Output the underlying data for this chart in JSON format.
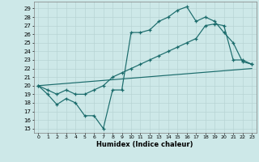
{
  "xlabel": "Humidex (Indice chaleur)",
  "background_color": "#cde8e8",
  "line_color": "#1a6b6b",
  "grid_color": "#b8d4d4",
  "xlim": [
    -0.5,
    23.5
  ],
  "ylim": [
    14.5,
    29.8
  ],
  "xticks": [
    0,
    1,
    2,
    3,
    4,
    5,
    6,
    7,
    8,
    9,
    10,
    11,
    12,
    13,
    14,
    15,
    16,
    17,
    18,
    19,
    20,
    21,
    22,
    23
  ],
  "yticks": [
    15,
    16,
    17,
    18,
    19,
    20,
    21,
    22,
    23,
    24,
    25,
    26,
    27,
    28,
    29
  ],
  "line1_x": [
    0,
    1,
    2,
    3,
    4,
    5,
    6,
    7,
    8,
    9,
    10,
    11,
    12,
    13,
    14,
    15,
    16,
    17,
    18,
    19,
    20,
    21,
    22,
    23
  ],
  "line1_y": [
    20.0,
    19.0,
    17.8,
    18.5,
    18.0,
    16.5,
    16.5,
    15.0,
    19.5,
    19.5,
    26.2,
    26.2,
    26.5,
    27.5,
    28.0,
    28.8,
    29.2,
    27.5,
    28.0,
    27.5,
    26.2,
    25.0,
    22.8,
    22.5
  ],
  "line2_x": [
    0,
    1,
    2,
    3,
    4,
    5,
    6,
    7,
    8,
    9,
    10,
    11,
    12,
    13,
    14,
    15,
    16,
    17,
    18,
    19,
    20,
    21,
    22,
    23
  ],
  "line2_y": [
    20.0,
    19.5,
    19.0,
    19.5,
    19.0,
    19.0,
    19.5,
    20.0,
    21.0,
    21.5,
    22.0,
    22.5,
    23.0,
    23.5,
    24.0,
    24.5,
    25.0,
    25.5,
    27.0,
    27.2,
    27.0,
    23.0,
    23.0,
    22.5
  ],
  "line3_x": [
    0,
    23
  ],
  "line3_y": [
    20.0,
    22.0
  ]
}
